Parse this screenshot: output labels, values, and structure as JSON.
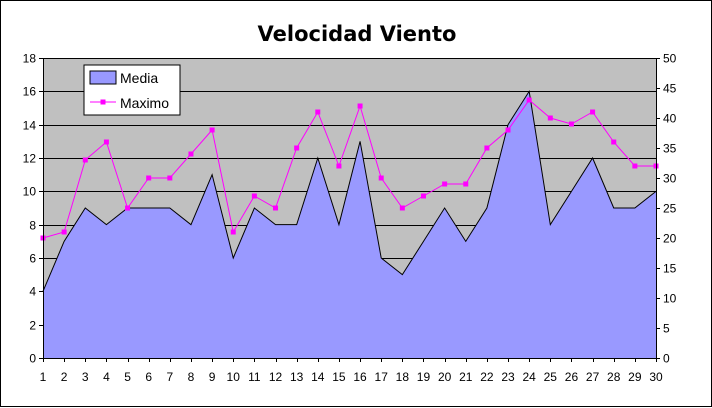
{
  "title": "Velocidad Viento",
  "chart_data": [
    {
      "type": "area",
      "title": "Velocidad Viento",
      "xlabel": "",
      "ylabel": "",
      "x": [
        1,
        2,
        3,
        4,
        5,
        6,
        7,
        8,
        9,
        10,
        11,
        12,
        13,
        14,
        15,
        16,
        17,
        18,
        19,
        20,
        21,
        22,
        23,
        24,
        25,
        26,
        27,
        28,
        29,
        30
      ],
      "series": [
        {
          "name": "Media",
          "axis": "left",
          "type": "area",
          "color": "#9999ff",
          "values": [
            4,
            7,
            9,
            8,
            9,
            9,
            9,
            8,
            11,
            6,
            9,
            8,
            8,
            12,
            8,
            13,
            6,
            5,
            7,
            9,
            7,
            9,
            14,
            16,
            8,
            10,
            12,
            9,
            9,
            10
          ]
        },
        {
          "name": "Maximo",
          "axis": "right",
          "type": "line",
          "color": "#ff00ff",
          "values": [
            20,
            21,
            33,
            36,
            25,
            30,
            30,
            34,
            38,
            21,
            27,
            25,
            35,
            41,
            32,
            42,
            30,
            25,
            27,
            29,
            29,
            35,
            38,
            43,
            40,
            39,
            41,
            36,
            32,
            32
          ]
        }
      ],
      "ylim_left": [
        0,
        18
      ],
      "yticks_left": [
        0,
        2,
        4,
        6,
        8,
        10,
        12,
        14,
        16,
        18
      ],
      "ylim_right": [
        0,
        50
      ],
      "yticks_right": [
        0,
        5,
        10,
        15,
        20,
        25,
        30,
        35,
        40,
        45,
        50
      ],
      "grid": true,
      "plot_background": "#c0c0c0",
      "legend_placement": "top-left"
    }
  ]
}
